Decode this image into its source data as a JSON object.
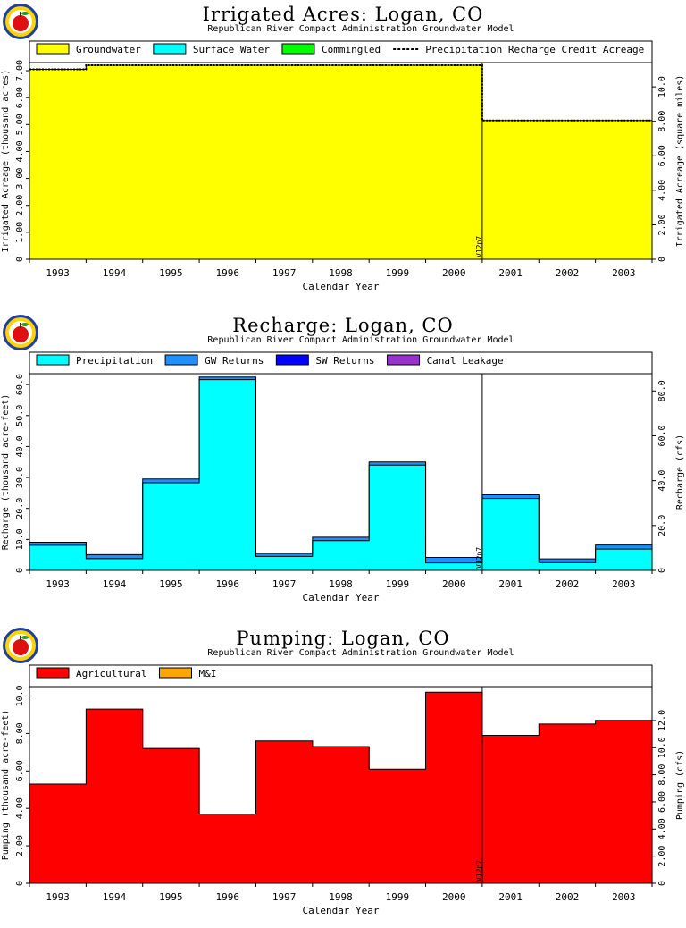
{
  "chart_data": [
    {
      "type": "area",
      "title": "Irrigated Acres: Logan, CO",
      "subtitle": "Republican River Compact Administration Groundwater Model",
      "xlabel": "Calendar Year",
      "ylabel": "Irrigated Acreage (thousand acres)",
      "ylabel_right": "Irrigated Acreage (square miles)",
      "categories": [
        "1993",
        "1994",
        "1995",
        "1996",
        "1997",
        "1998",
        "1999",
        "2000",
        "2001",
        "2002",
        "2003"
      ],
      "ylim": [
        0,
        7.3
      ],
      "yticks": [
        "0",
        "1.00",
        "2.00",
        "3.00",
        "4.00",
        "5.00",
        "6.00",
        "7.00"
      ],
      "yticks_right": [
        "0",
        "2.00",
        "4.00",
        "6.00",
        "8.00",
        "10.0"
      ],
      "right_scale": 1.5625,
      "legend_placement": "top",
      "series": [
        {
          "name": "Groundwater",
          "color": "#ffff00",
          "values": [
            7.05,
            7.2,
            7.2,
            7.2,
            7.2,
            7.2,
            7.2,
            7.2,
            5.15,
            5.15,
            5.15
          ]
        },
        {
          "name": "Surface Water",
          "color": "#00ffff",
          "values": [
            0,
            0,
            0,
            0,
            0,
            0,
            0,
            0,
            0,
            0,
            0
          ]
        },
        {
          "name": "Commingled",
          "color": "#00ff00",
          "values": [
            0,
            0,
            0,
            0,
            0,
            0,
            0,
            0,
            0,
            0,
            0
          ]
        },
        {
          "name": "Precipitation Recharge Credit Acreage",
          "color": "#000000",
          "style": "dashed",
          "values": [
            7.05,
            7.2,
            7.2,
            7.2,
            7.2,
            7.2,
            7.2,
            7.2,
            5.15,
            5.15,
            5.15
          ]
        }
      ],
      "marker": {
        "label": "V12p7",
        "after_category": "2000"
      }
    },
    {
      "type": "area",
      "title": "Recharge: Logan, CO",
      "subtitle": "Republican River Compact Administration Groundwater Model",
      "xlabel": "Calendar Year",
      "ylabel": "Recharge (thousand acre-feet)",
      "ylabel_right": "Recharge (cfs)",
      "categories": [
        "1993",
        "1994",
        "1995",
        "1996",
        "1997",
        "1998",
        "1999",
        "2000",
        "2001",
        "2002",
        "2003"
      ],
      "ylim": [
        0,
        63.5
      ],
      "yticks": [
        "0",
        "10.0",
        "20.0",
        "30.0",
        "40.0",
        "50.0",
        "60.0"
      ],
      "yticks_right": [
        "0",
        "20.0",
        "40.0",
        "60.0",
        "80.0"
      ],
      "right_scale": 1.381,
      "legend_placement": "top",
      "series": [
        {
          "name": "Precipitation",
          "color": "#00ffff",
          "values": [
            8.1,
            3.8,
            28.3,
            61.6,
            4.5,
            9.6,
            34.0,
            2.4,
            23.2,
            2.5,
            6.9
          ]
        },
        {
          "name": "GW Returns",
          "color": "#1e90ff",
          "values": [
            1.0,
            1.3,
            1.2,
            0.8,
            1.0,
            1.1,
            1.0,
            1.8,
            1.2,
            1.2,
            1.3
          ]
        },
        {
          "name": "SW Returns",
          "color": "#0000ff",
          "values": [
            0,
            0,
            0,
            0,
            0,
            0,
            0,
            0,
            0,
            0,
            0
          ]
        },
        {
          "name": "Canal Leakage",
          "color": "#9932cc",
          "values": [
            0,
            0,
            0,
            0,
            0,
            0,
            0,
            0,
            0,
            0,
            0
          ]
        }
      ],
      "marker": {
        "label": "V12p7",
        "after_category": "2000"
      }
    },
    {
      "type": "area",
      "title": "Pumping: Logan, CO",
      "subtitle": "Republican River Compact Administration Groundwater Model",
      "xlabel": "Calendar Year",
      "ylabel": "Pumping (thousand acre-feet)",
      "ylabel_right": "Pumping (cfs)",
      "categories": [
        "1993",
        "1994",
        "1995",
        "1996",
        "1997",
        "1998",
        "1999",
        "2000",
        "2001",
        "2002",
        "2003"
      ],
      "ylim": [
        0,
        10.5
      ],
      "yticks": [
        "0",
        "2.00",
        "4.00",
        "6.00",
        "8.00",
        "10.0"
      ],
      "yticks_right": [
        "0",
        "2.00",
        "4.00",
        "6.00",
        "8.00",
        "10.0",
        "12.0"
      ],
      "right_scale": 1.381,
      "legend_placement": "top",
      "series": [
        {
          "name": "Agricultural",
          "color": "#ff0000",
          "values": [
            5.3,
            9.3,
            7.2,
            3.7,
            7.6,
            7.3,
            6.1,
            10.2,
            7.9,
            8.5,
            8.7
          ]
        },
        {
          "name": "M&I",
          "color": "#ffa500",
          "values": [
            0,
            0,
            0,
            0,
            0,
            0,
            0,
            0,
            0,
            0,
            0
          ]
        }
      ],
      "marker": {
        "label": "V12p7",
        "after_category": "2000"
      }
    }
  ]
}
